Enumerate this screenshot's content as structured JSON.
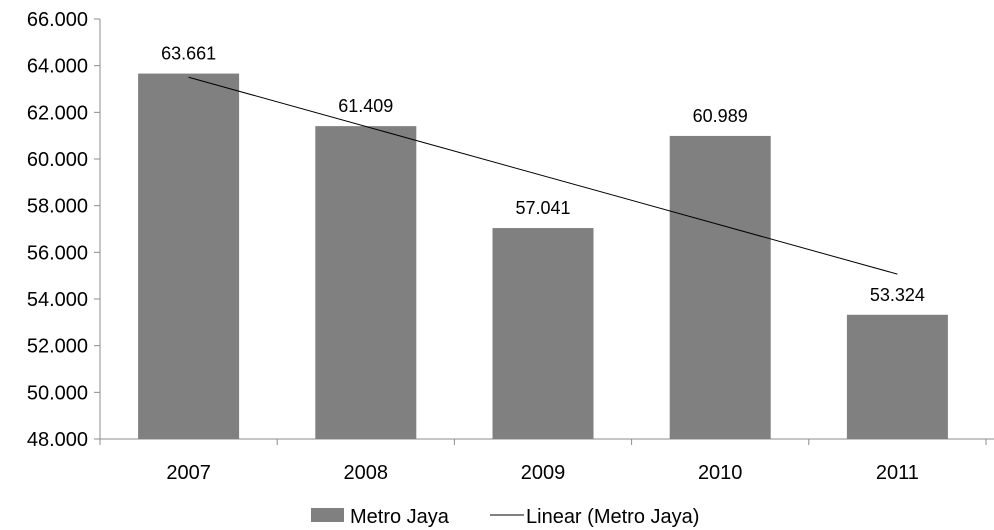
{
  "chart_data": {
    "type": "bar",
    "categories": [
      "2007",
      "2008",
      "2009",
      "2010",
      "2011"
    ],
    "series": [
      {
        "name": "Metro Jaya",
        "values": [
          63661,
          61409,
          57041,
          60989,
          53324
        ],
        "value_labels": [
          "63.661",
          "61.409",
          "57.041",
          "60.989",
          "53.324"
        ],
        "color": "#808080"
      }
    ],
    "trendline": {
      "name": "Linear (Metro Jaya)",
      "type": "linear",
      "color": "#000000"
    },
    "ylim": [
      48000,
      66000
    ],
    "y_ticks": [
      48000,
      50000,
      52000,
      54000,
      56000,
      58000,
      60000,
      62000,
      64000,
      66000
    ],
    "y_tick_labels": [
      "48.000",
      "50.000",
      "52.000",
      "54.000",
      "56.000",
      "58.000",
      "60.000",
      "62.000",
      "64.000",
      "66.000"
    ],
    "grid": false,
    "legend_position": "bottom",
    "title": "",
    "xlabel": "",
    "ylabel": ""
  }
}
